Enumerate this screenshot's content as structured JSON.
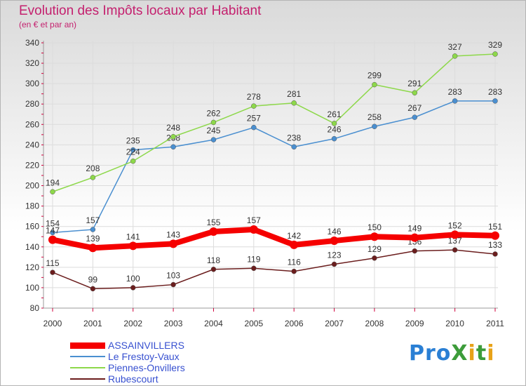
{
  "header": {
    "title": "Evolution des Impôts locaux par Habitant",
    "subtitle": "(en € et par an)"
  },
  "logo": {
    "text": "ProXiti",
    "colors": [
      "#2a7fd4",
      "#e8a218",
      "#3d9c3a"
    ]
  },
  "chart_data": {
    "type": "line",
    "title": "Evolution des Impôts locaux par Habitant",
    "subtitle": "(en € et par an)",
    "xlabel": "",
    "ylabel": "",
    "ylim": [
      80,
      340
    ],
    "yticks": [
      80,
      100,
      120,
      140,
      160,
      180,
      200,
      220,
      240,
      260,
      280,
      300,
      320,
      340
    ],
    "categories": [
      "2000",
      "2001",
      "2002",
      "2003",
      "2004",
      "2005",
      "2006",
      "2007",
      "2008",
      "2009",
      "2010",
      "2011"
    ],
    "grid": true,
    "legend_position": "bottom-left",
    "series": [
      {
        "name": "ASSAINVILLERS",
        "color": "#f50000",
        "emphasis": true,
        "values": [
          147,
          139,
          141,
          143,
          155,
          157,
          142,
          146,
          150,
          149,
          152,
          151
        ]
      },
      {
        "name": "Le Frestoy-Vaux",
        "color": "#4a8fd0",
        "emphasis": false,
        "values": [
          154,
          157,
          235,
          238,
          245,
          257,
          238,
          246,
          258,
          267,
          283,
          283
        ]
      },
      {
        "name": "Piennes-Onvillers",
        "color": "#8dd84a",
        "emphasis": false,
        "values": [
          194,
          208,
          224,
          248,
          262,
          278,
          281,
          261,
          299,
          291,
          327,
          329
        ]
      },
      {
        "name": "Rubescourt",
        "color": "#6b1d1d",
        "emphasis": false,
        "values": [
          115,
          99,
          100,
          103,
          118,
          119,
          116,
          123,
          129,
          136,
          137,
          133
        ]
      }
    ]
  }
}
